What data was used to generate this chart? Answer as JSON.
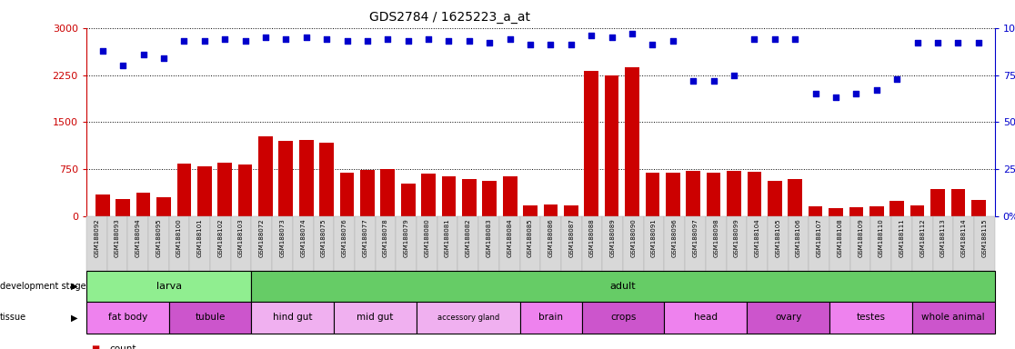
{
  "title": "GDS2784 / 1625223_a_at",
  "samples": [
    "GSM188092",
    "GSM188093",
    "GSM188094",
    "GSM188095",
    "GSM188100",
    "GSM188101",
    "GSM188102",
    "GSM188103",
    "GSM188072",
    "GSM188073",
    "GSM188074",
    "GSM188075",
    "GSM188076",
    "GSM188077",
    "GSM188078",
    "GSM188079",
    "GSM188080",
    "GSM188081",
    "GSM188082",
    "GSM188083",
    "GSM188084",
    "GSM188085",
    "GSM188086",
    "GSM188087",
    "GSM188088",
    "GSM188089",
    "GSM188090",
    "GSM188091",
    "GSM188096",
    "GSM188097",
    "GSM188098",
    "GSM188099",
    "GSM188104",
    "GSM188105",
    "GSM188106",
    "GSM188107",
    "GSM188108",
    "GSM188109",
    "GSM188110",
    "GSM188111",
    "GSM188112",
    "GSM188113",
    "GSM188114",
    "GSM188115"
  ],
  "counts": [
    350,
    270,
    380,
    310,
    840,
    800,
    850,
    820,
    1280,
    1200,
    1220,
    1180,
    700,
    740,
    760,
    520,
    680,
    640,
    600,
    560,
    640,
    175,
    185,
    175,
    2320,
    2250,
    2380,
    700,
    700,
    730,
    700,
    720,
    710,
    560,
    590,
    155,
    135,
    150,
    165,
    245,
    175,
    440,
    440,
    260
  ],
  "percentile": [
    88,
    80,
    86,
    84,
    93,
    93,
    94,
    93,
    95,
    94,
    95,
    94,
    93,
    93,
    94,
    93,
    94,
    93,
    93,
    92,
    94,
    91,
    91,
    91,
    96,
    95,
    97,
    91,
    93,
    72,
    72,
    75,
    94,
    94,
    94,
    65,
    63,
    65,
    67,
    73,
    92,
    92,
    92,
    92
  ],
  "dev_stage_groups": [
    {
      "label": "larva",
      "start": 0,
      "end": 7,
      "color": "#90ee90"
    },
    {
      "label": "adult",
      "start": 8,
      "end": 43,
      "color": "#66cc66"
    }
  ],
  "tissue_groups": [
    {
      "label": "fat body",
      "start": 0,
      "end": 3,
      "color": "#ee82ee"
    },
    {
      "label": "tubule",
      "start": 4,
      "end": 7,
      "color": "#cc55cc"
    },
    {
      "label": "hind gut",
      "start": 8,
      "end": 11,
      "color": "#f0b0f0"
    },
    {
      "label": "mid gut",
      "start": 12,
      "end": 15,
      "color": "#f0b0f0"
    },
    {
      "label": "accessory gland",
      "start": 16,
      "end": 20,
      "color": "#f0b0f0"
    },
    {
      "label": "brain",
      "start": 21,
      "end": 23,
      "color": "#ee82ee"
    },
    {
      "label": "crops",
      "start": 24,
      "end": 27,
      "color": "#cc55cc"
    },
    {
      "label": "head",
      "start": 28,
      "end": 31,
      "color": "#ee82ee"
    },
    {
      "label": "ovary",
      "start": 32,
      "end": 35,
      "color": "#cc55cc"
    },
    {
      "label": "testes",
      "start": 36,
      "end": 39,
      "color": "#ee82ee"
    },
    {
      "label": "whole animal",
      "start": 40,
      "end": 43,
      "color": "#cc55cc"
    }
  ],
  "ylim_left": [
    0,
    3000
  ],
  "ylim_right": [
    0,
    100
  ],
  "yticks_left": [
    0,
    750,
    1500,
    2250,
    3000
  ],
  "yticks_right": [
    0,
    25,
    50,
    75,
    100
  ],
  "bar_color": "#cc0000",
  "dot_color": "#0000cc",
  "left_axis_color": "#cc0000",
  "right_axis_color": "#0000cc"
}
